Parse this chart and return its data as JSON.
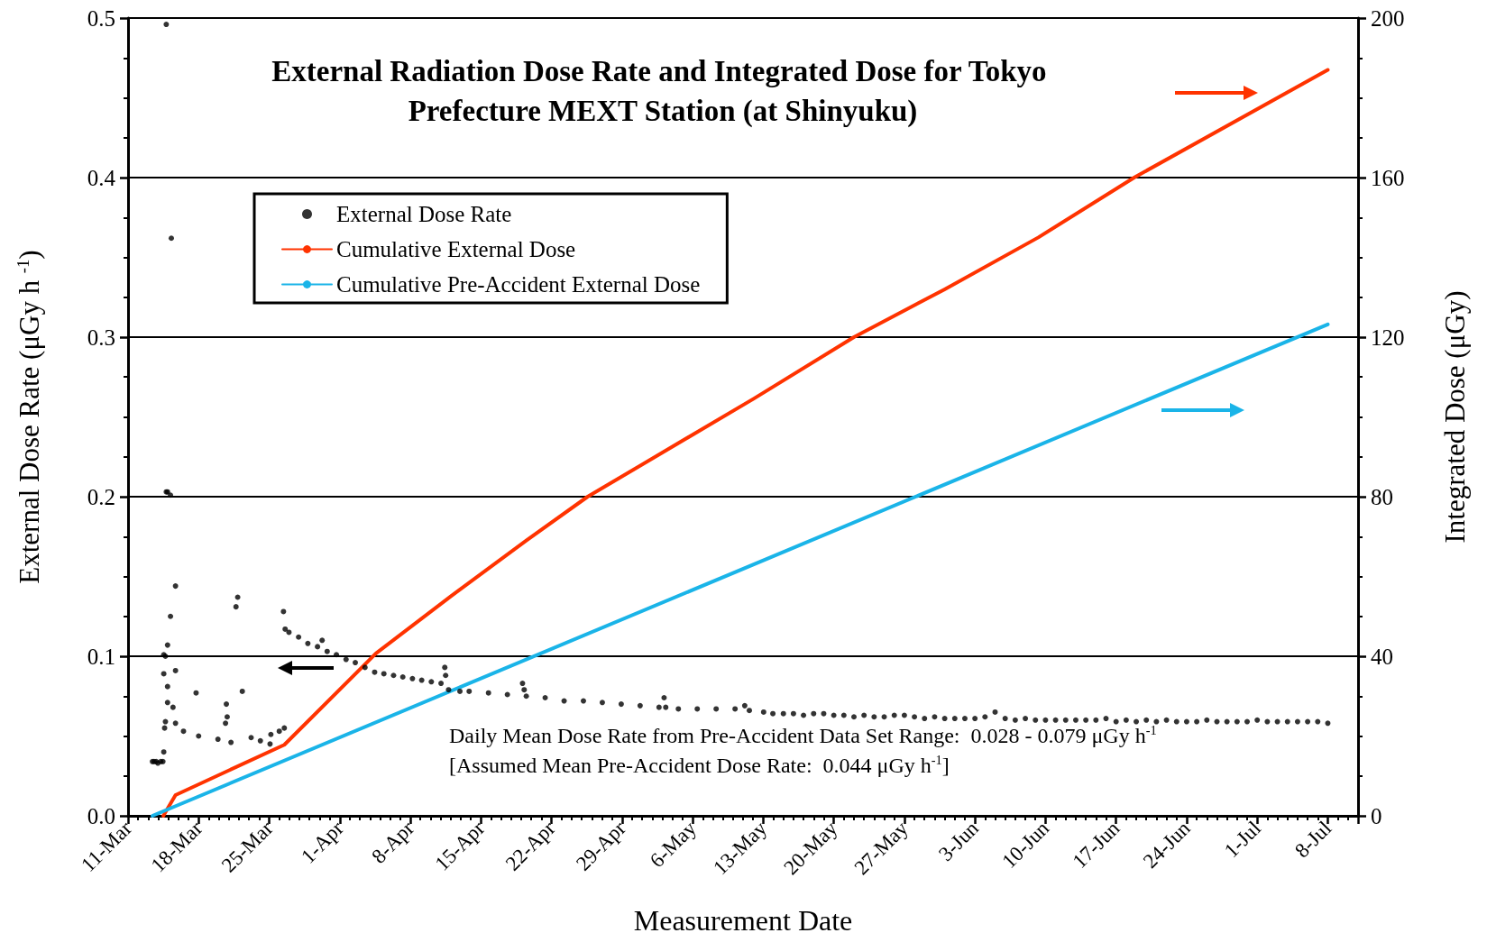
{
  "chart_data": {
    "type": "scatter",
    "title": "External Radiation Dose Rate and Integrated Dose for Tokyo Prefecture MEXT Station (at Shinyuku)",
    "xlabel": "Measurement Date",
    "ylabel": "External Dose Rate (μGy h $^{-1}$)",
    "y2label": "Integrated Dose (μGy)",
    "annotations": [
      "Daily Mean Dose Rate from Pre-Accident Data Set Range:  0.028 - 0.079 μGy h$^{-1}$",
      "[Assumed Mean Pre-Accident Dose Rate:  0.044 μGy h$^{-1}$]"
    ],
    "xlim": [
      "--03-11",
      "--07-11"
    ],
    "xticks": [
      {
        "value": "--03-11",
        "label": "11-Mar"
      },
      {
        "value": "--03-18",
        "label": "18-Mar"
      },
      {
        "value": "--03-25",
        "label": "25-Mar"
      },
      {
        "value": "--04-01",
        "label": "1-Apr"
      },
      {
        "value": "--04-08",
        "label": "8-Apr"
      },
      {
        "value": "--04-15",
        "label": "15-Apr"
      },
      {
        "value": "--04-22",
        "label": "22-Apr"
      },
      {
        "value": "--04-29",
        "label": "29-Apr"
      },
      {
        "value": "--05-06",
        "label": "6-May"
      },
      {
        "value": "--05-13",
        "label": "13-May"
      },
      {
        "value": "--05-20",
        "label": "20-May"
      },
      {
        "value": "--05-27",
        "label": "27-May"
      },
      {
        "value": "--06-03",
        "label": "3-Jun"
      },
      {
        "value": "--06-10",
        "label": "10-Jun"
      },
      {
        "value": "--06-17",
        "label": "17-Jun"
      },
      {
        "value": "--06-24",
        "label": "24-Jun"
      },
      {
        "value": "--07-01",
        "label": "1-Jul"
      },
      {
        "value": "--07-08",
        "label": "8-Jul"
      }
    ],
    "ylim": [
      0,
      0.5
    ],
    "yticks": [
      {
        "value": 0,
        "label": "0.0"
      },
      0.1,
      0.2,
      0.3,
      0.4,
      0.5
    ],
    "y2lim": [
      0,
      200
    ],
    "y2ticks": [
      0,
      40,
      80,
      120,
      160,
      200
    ],
    "grid": "y",
    "legend": "top left",
    "series": [
      {
        "name": "External Dose Rate",
        "marker": "circle",
        "color": "#000000",
        "x": [
          "--03-13T10:00",
          "--03-13T14:00",
          "--03-13T19:00",
          "--03-13T23:00",
          "--03-14T06:00",
          "--03-14T11:00",
          "--03-14T13:00",
          "--03-14T15:00",
          "--03-14T17:00",
          "--03-14T19:00",
          "--03-14T22:00",
          "--03-14T19:00",
          "--03-15T05:00",
          "--03-15T07:00",
          "--03-14T22:00",
          "--03-15T17:00",
          "--03-15T05:00",
          "--03-14T13:00",
          "--03-14T13:00",
          "--03-15T17:00",
          "--03-14T22:00",
          "--03-14T22:00",
          "--03-15T11:00",
          "--03-14T17:00",
          "--03-15T17:00",
          "--03-16T12:00",
          "--03-17T18:00",
          "--03-18T00:00",
          "--03-19T22:00",
          "--03-20T16:00",
          "--03-20T18:00",
          "--03-20T20:00",
          "--03-21T05:00",
          "--03-21T17:00",
          "--03-21T21:00",
          "--03-22T08:00",
          "--03-23T05:00",
          "--03-24T03:00",
          "--03-25T02:00",
          "--03-25T04:00",
          "--03-26T00:00",
          "--03-26T12:00",
          "--03-26T10:00",
          "--03-26T14:00",
          "--03-26T23:00",
          "--03-27T22:00",
          "--03-28T20:00",
          "--03-29T19:00",
          "--03-30T06:00",
          "--03-30T18:00",
          "--03-31T16:00",
          "--04-01T15:00",
          "--04-02T13:00",
          "--04-03T12:00",
          "--04-04T11:00",
          "--04-05T09:00",
          "--04-06T08:00",
          "--04-07T06:00",
          "--04-08T05:00",
          "--04-09T03:00",
          "--04-10T02:00",
          "--04-11T01:00",
          "--04-11T10:00",
          "--04-11T12:00",
          "--04-11T19:00",
          "--04-12T22:00",
          "--04-13T20:00",
          "--04-15T18:00",
          "--04-17T15:00",
          "--04-19T03:00",
          "--04-19T07:00",
          "--04-19T12:00",
          "--04-21T09:00",
          "--04-23T06:00",
          "--04-25T04:00",
          "--04-27T01:00",
          "--04-28T22:00",
          "--04-30T19:00",
          "--05-02T16:00",
          "--05-03T04:00",
          "--05-03T08:00",
          "--05-04T14:00",
          "--05-06T11:00",
          "--05-08T08:00",
          "--05-10T05:00",
          "--05-11T04:00",
          "--05-11T15:00",
          "--05-13T01:00",
          "--05-13T23:00",
          "--05-15",
          "--05-16",
          "--05-17",
          "--05-18",
          "--05-19",
          "--05-20",
          "--05-21",
          "--05-22",
          "--05-23",
          "--05-24",
          "--05-25",
          "--05-26",
          "--05-27",
          "--05-28",
          "--05-29",
          "--05-30",
          "--05-31",
          "--06-01",
          "--06-02",
          "--06-03",
          "--06-04",
          "--06-05",
          "--06-06",
          "--06-07",
          "--06-08",
          "--06-09",
          "--06-10",
          "--06-11",
          "--06-12",
          "--06-13",
          "--06-14",
          "--06-15",
          "--06-16",
          "--06-17",
          "--06-18",
          "--06-19",
          "--06-20",
          "--06-21",
          "--06-22",
          "--06-23",
          "--06-24",
          "--06-25",
          "--06-26",
          "--06-27",
          "--06-28",
          "--06-29",
          "--06-30",
          "--07-01",
          "--07-02",
          "--07-03",
          "--07-04",
          "--07-05",
          "--07-06",
          "--07-07",
          "--07-08"
        ],
        "values": [
          0.034,
          0.034,
          0.034,
          0.033,
          0.034,
          0.034,
          0.04,
          0.055,
          0.1,
          0.496,
          0.203,
          0.203,
          0.201,
          0.362,
          0.107,
          0.144,
          0.125,
          0.101,
          0.089,
          0.091,
          0.081,
          0.071,
          0.068,
          0.059,
          0.058,
          0.053,
          0.077,
          0.05,
          0.048,
          0.058,
          0.07,
          0.062,
          0.046,
          0.131,
          0.137,
          0.078,
          0.049,
          0.047,
          0.045,
          0.051,
          0.053,
          0.055,
          0.128,
          0.117,
          0.115,
          0.112,
          0.108,
          0.106,
          0.11,
          0.103,
          0.101,
          0.098,
          0.096,
          0.093,
          0.09,
          0.089,
          0.088,
          0.087,
          0.086,
          0.085,
          0.084,
          0.083,
          0.093,
          0.088,
          0.079,
          0.078,
          0.078,
          0.077,
          0.076,
          0.083,
          0.079,
          0.075,
          0.074,
          0.072,
          0.072,
          0.071,
          0.07,
          0.069,
          0.068,
          0.074,
          0.068,
          0.067,
          0.067,
          0.067,
          0.067,
          0.069,
          0.066,
          0.065,
          0.064,
          0.064,
          0.064,
          0.063,
          0.064,
          0.064,
          0.063,
          0.063,
          0.062,
          0.063,
          0.062,
          0.062,
          0.063,
          0.063,
          0.062,
          0.061,
          0.062,
          0.061,
          0.061,
          0.061,
          0.061,
          0.062,
          0.065,
          0.061,
          0.06,
          0.061,
          0.06,
          0.06,
          0.06,
          0.06,
          0.06,
          0.06,
          0.06,
          0.061,
          0.059,
          0.06,
          0.059,
          0.06,
          0.059,
          0.06,
          0.059,
          0.059,
          0.059,
          0.06,
          0.059,
          0.059,
          0.059,
          0.059,
          0.06,
          0.059,
          0.059,
          0.059,
          0.059,
          0.059,
          0.059,
          0.058
        ]
      },
      {
        "name": "Cumulative External Dose",
        "type": "line",
        "axis": "y2",
        "color": "#ff3300",
        "x": [
          "--03-14T12:00",
          "--03-15T17:00",
          "--03-26T12:00",
          "--04-04T14:00",
          "--04-12",
          "--04-19T12:00",
          "--04-25T14:00",
          "--05-12T02:00",
          "--05-22",
          "--05-31",
          "--06-09T07:00",
          "--06-18T19:00",
          "--07-08"
        ],
        "values": [
          0,
          5.2,
          17.8,
          40.7,
          55,
          69,
          80,
          104.6,
          120,
          132,
          145,
          160,
          187
        ]
      },
      {
        "name": "Cumulative Pre-Accident External Dose",
        "type": "line",
        "axis": "y2",
        "color": "#1ab4e8",
        "x": [
          "--03-13T10:00",
          "--07-08"
        ],
        "values": [
          0,
          123.2
        ]
      }
    ]
  }
}
